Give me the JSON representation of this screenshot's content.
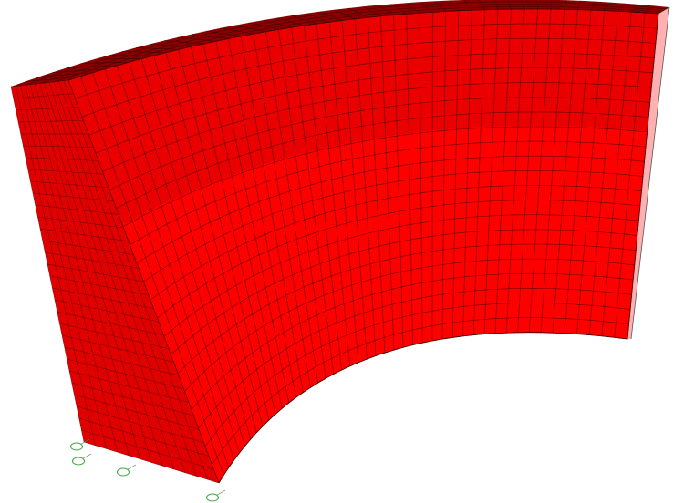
{
  "model": {
    "colors": {
      "background": "#ffffff",
      "inner_face": "#ff0000",
      "top_face": "#8a0000",
      "side_face": "#e00000",
      "top_band": "#d80000",
      "mesh_line": "#3a0000",
      "node_marker": "#3aa83a"
    }
  },
  "node_markers": [
    {
      "id": "node-1",
      "label": ""
    },
    {
      "id": "node-2",
      "label": ""
    },
    {
      "id": "node-3",
      "label": ""
    },
    {
      "id": "node-4",
      "label": ""
    }
  ]
}
